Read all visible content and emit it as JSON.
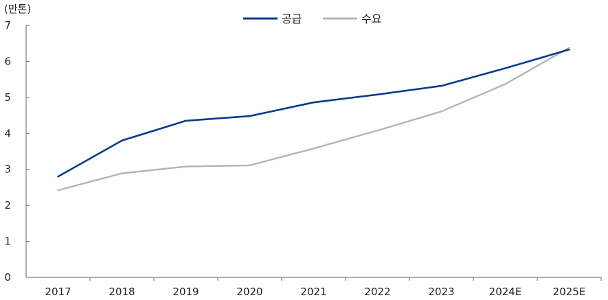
{
  "chart_data": {
    "type": "line",
    "unit_label": "(만톤)",
    "categories": [
      "2017",
      "2018",
      "2019",
      "2020",
      "2021",
      "2022",
      "2023",
      "2024E",
      "2025E"
    ],
    "ylim": [
      0,
      7
    ],
    "yticks": [
      0,
      1,
      2,
      3,
      4,
      5,
      6,
      7
    ],
    "grid": false,
    "legend_position": "top-center",
    "series": [
      {
        "name": "공급",
        "color": "#0b3a8c",
        "values": [
          2.8,
          3.8,
          4.35,
          4.48,
          4.86,
          5.08,
          5.32,
          5.81,
          6.33
        ]
      },
      {
        "name": "수요",
        "color": "#b4b4b4",
        "values": [
          2.42,
          2.89,
          3.08,
          3.11,
          3.58,
          4.08,
          4.61,
          5.37,
          6.38
        ]
      }
    ]
  }
}
